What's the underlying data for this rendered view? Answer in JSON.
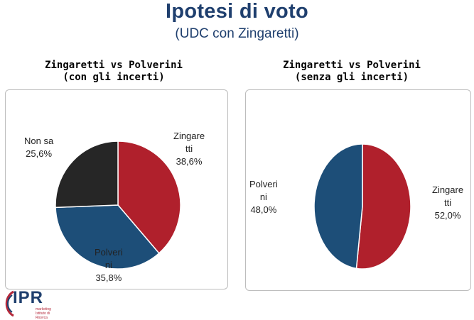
{
  "title": "Ipotesi di voto",
  "subtitle": "(UDC con Zingaretti)",
  "colors": {
    "zingaretti": "#b0202c",
    "polverini": "#1d4e78",
    "non_sa": "#262626",
    "title": "#1f3f6e"
  },
  "logo": {
    "text": "IPR",
    "small_1": "marketing",
    "small_2": "Istituto di Ricerca",
    "icon": "ipr-swoosh-logo"
  },
  "chart_data": [
    {
      "type": "pie",
      "title_line1": "Zingaretti vs Polverini",
      "title_line2": "(con gli incerti)",
      "slices": [
        {
          "name_line1": "Zingare",
          "name_line2": "tti",
          "value": 38.6,
          "value_label": "38,6%",
          "color": "#b0202c"
        },
        {
          "name_line1": "Polveri",
          "name_line2": "ni",
          "value": 35.8,
          "value_label": "35,8%",
          "color": "#1d4e78"
        },
        {
          "name_line1": "Non sa",
          "name_line2": "",
          "value": 25.6,
          "value_label": "25,6%",
          "color": "#262626"
        }
      ]
    },
    {
      "type": "pie",
      "title_line1": "Zingaretti vs Polverini",
      "title_line2": "(senza gli incerti)",
      "slices": [
        {
          "name_line1": "Zingare",
          "name_line2": "tti",
          "value": 52.0,
          "value_label": "52,0%",
          "color": "#b0202c"
        },
        {
          "name_line1": "Polveri",
          "name_line2": "ni",
          "value": 48.0,
          "value_label": "48,0%",
          "color": "#1d4e78"
        }
      ]
    }
  ]
}
